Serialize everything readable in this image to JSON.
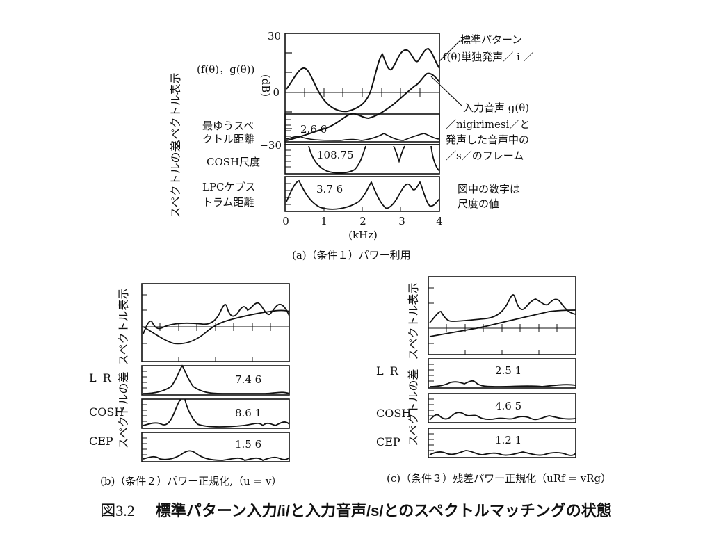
{
  "figure_number": "図3.2",
  "figure_title": "標準パターン入力/i/と入力音声/s/とのスペクトルマッチングの状態",
  "panel_a": {
    "caption": "(a)（条件１）パワー利用",
    "ylabel_spectrum": "スペクトル表示",
    "ylabel_diff": "スペクトルの差",
    "series_label": "(f(θ)，g(θ))",
    "unit_db": "(dB)",
    "tick_30": "30",
    "tick_0": "0",
    "tick_m30": "−30",
    "annot_ref_1": "標準パターン",
    "annot_ref_2": "f(θ)単独発声／ i ／",
    "annot_in_1": "入力音声 g(θ)",
    "annot_in_2": "／nigirimesi／と",
    "annot_in_3": "発声した音声中の",
    "annot_in_4": "／s／のフレーム",
    "row1_label_1": "最ゆうスペ",
    "row1_label_2": "クトル距離",
    "row1_value": "2.6 6",
    "row2_label": "COSH尺度",
    "row2_value": "108.75",
    "row3_label_1": "LPCケプス",
    "row3_label_2": "トラム距離",
    "row3_value": "3.7 6",
    "note_1": "図中の数字は",
    "note_2": "尺度の値",
    "x_ticks": [
      "0",
      "1",
      "2",
      "3",
      "4"
    ],
    "x_unit": "(kHz)"
  },
  "panel_b": {
    "caption": "(b)（条件２）パワー正規化,（u = v）",
    "ylabel_spectrum": "スペクトル表示",
    "ylabel_diff": "スペクトルの差",
    "rows": [
      {
        "label": "L R",
        "value": "7.4 6"
      },
      {
        "label": "COSH",
        "value": "8.6 1"
      },
      {
        "label": "CEP",
        "value": "1.5 6"
      }
    ]
  },
  "panel_c": {
    "caption": "(c)（条件３）残差パワー正規化（uRf = vRg）",
    "ylabel_spectrum": "スペクトル表示",
    "ylabel_diff": "スペクトルの差",
    "rows": [
      {
        "label": "L R",
        "value": "2.5 1"
      },
      {
        "label": "COSH",
        "value": "4.6 5"
      },
      {
        "label": "CEP",
        "value": "1.2 1"
      }
    ]
  }
}
